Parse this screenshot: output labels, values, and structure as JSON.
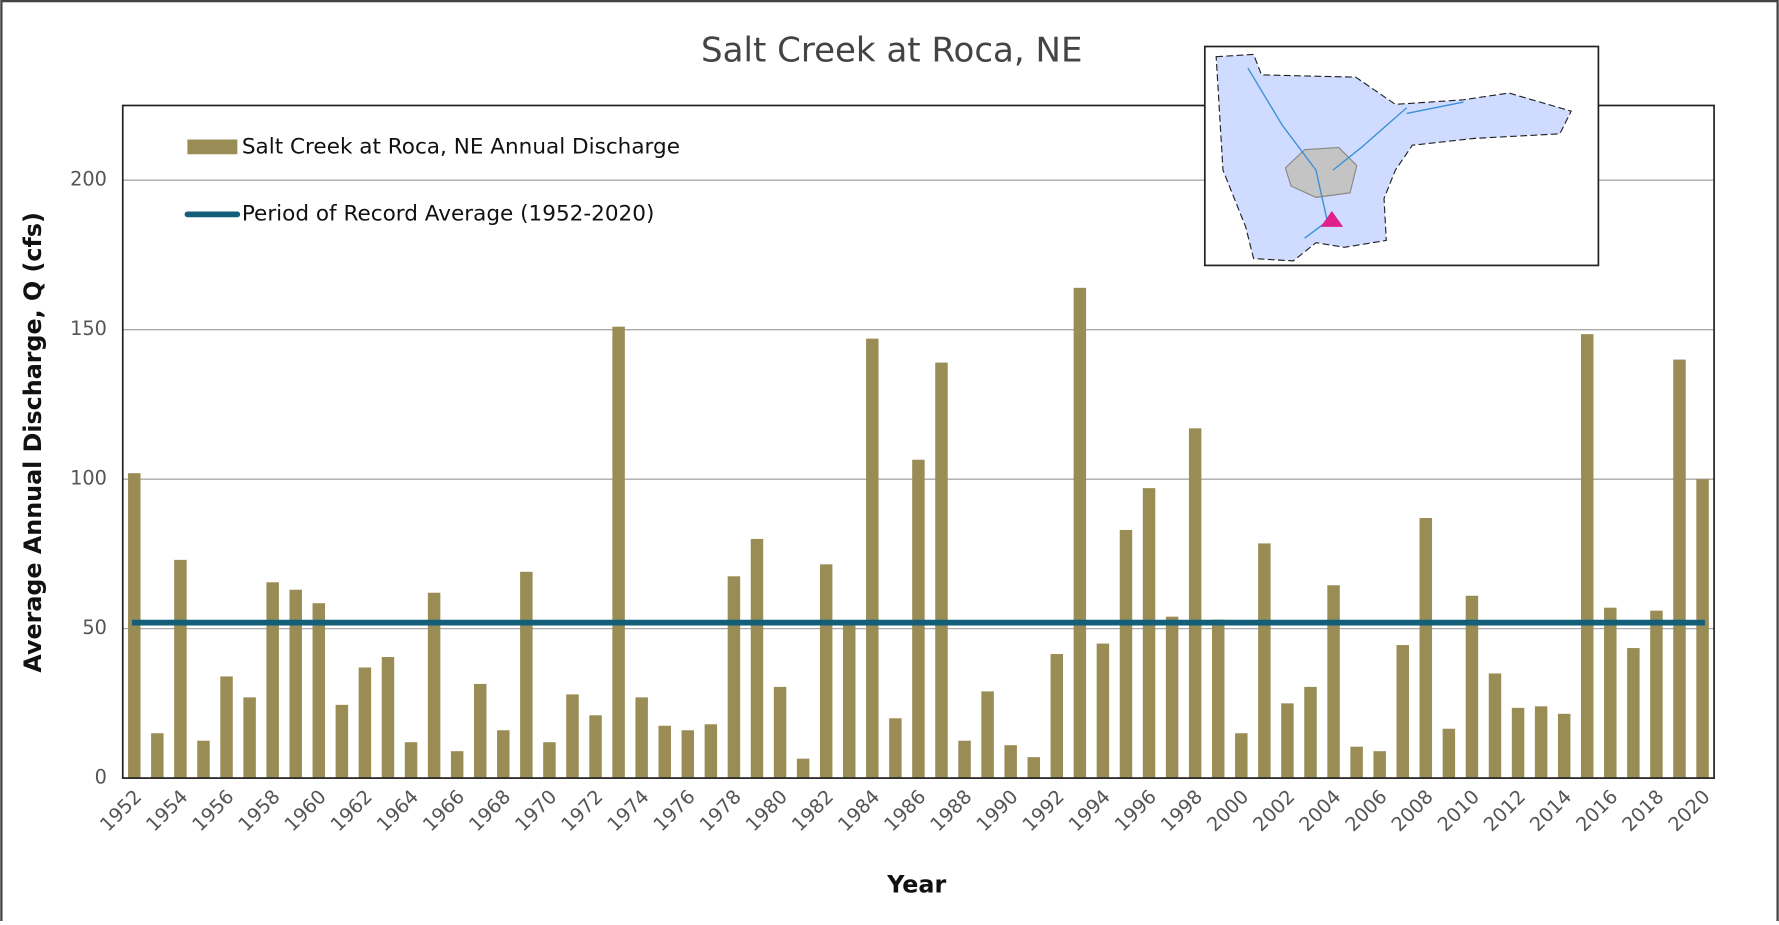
{
  "chart_data": {
    "type": "bar",
    "title": "Salt Creek at Roca, NE",
    "x_label": "Year",
    "y_label": "Average Annual Discharge, Q (cfs)",
    "categories": [
      "1952",
      null,
      "1954",
      null,
      "1956",
      null,
      "1958",
      null,
      "1960",
      null,
      "1962",
      null,
      "1964",
      null,
      "1966",
      null,
      "1968",
      null,
      "1970",
      null,
      "1972",
      null,
      "1974",
      null,
      "1976",
      null,
      "1978",
      null,
      "1980",
      null,
      "1982",
      null,
      "1984",
      null,
      "1986",
      null,
      "1988",
      null,
      "1990",
      null,
      "1992",
      null,
      "1994",
      null,
      "1996",
      null,
      "1998",
      null,
      "2000",
      null,
      "2002",
      null,
      "2004",
      null,
      "2006",
      null,
      "2008",
      null,
      "2010",
      null,
      "2012",
      null,
      "2014",
      null,
      "2016",
      null,
      "2018",
      null,
      "2020"
    ],
    "series": [
      {
        "name": "Salt Creek at Roca, NE Annual Discharge",
        "color": "#998c55",
        "values": [
          102,
          15,
          73,
          12.5,
          34,
          27,
          65.5,
          63,
          58.5,
          24.5,
          37,
          40.5,
          12,
          62,
          9,
          31.5,
          16,
          69,
          12,
          28,
          21,
          151,
          27,
          17.5,
          16,
          18,
          67.5,
          80,
          30.5,
          6.5,
          71.5,
          52,
          147,
          20,
          106.5,
          139,
          12.5,
          29,
          11,
          7,
          41.5,
          164,
          45,
          83,
          97,
          54,
          117,
          53,
          15,
          78.5,
          25,
          30.5,
          64.5,
          10.5,
          9,
          44.5,
          87,
          16.5,
          61,
          35,
          23.5,
          24,
          21.5,
          148.5,
          57,
          43.5,
          56,
          140,
          100
        ]
      }
    ],
    "average_line": {
      "name": "Period of Record Average (1952-2020)",
      "color": "#135e78",
      "value": 52
    },
    "ylim": [
      0,
      225
    ],
    "yticks": [
      0,
      50,
      100,
      150,
      200
    ],
    "grid": true
  }
}
